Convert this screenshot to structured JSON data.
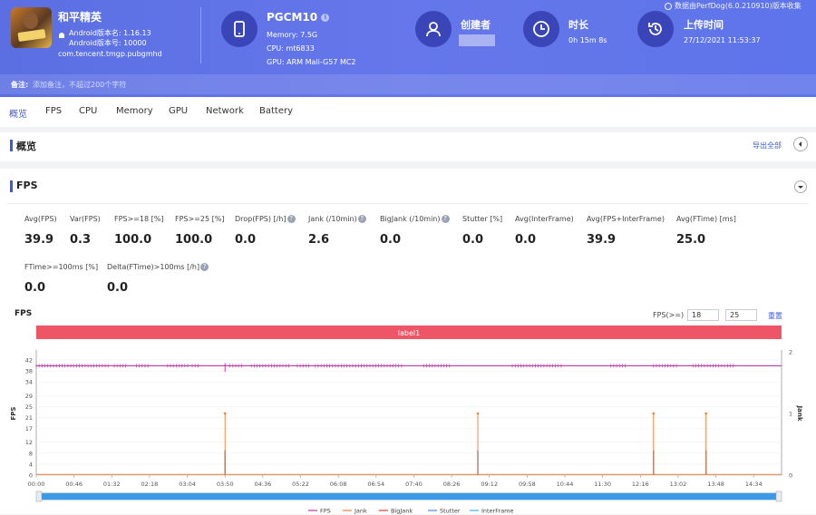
{
  "app": {
    "name": "和平精英",
    "version": "Android版本名: 1.16.13",
    "build": "Android版本号: 10000",
    "package": "com.tencent.tmgp.pubgmhd",
    "note_label": "备注:",
    "note_placeholder": "添加备注，不超过200个字符"
  },
  "device": {
    "name": "PGCM10",
    "memory": "Memory: 7.5G",
    "cpu": "CPU: mt6833",
    "gpu": "GPU: ARM Mali-G57 MC2"
  },
  "creator": {
    "label": "创建者"
  },
  "duration": {
    "label": "时长",
    "value": "0h 15m 8s"
  },
  "upload": {
    "label": "上传时间",
    "value": "27/12/2021 11:53:37"
  },
  "source": "数据由PerfDog(6.0.210910)版本收集",
  "tabs": [
    "概览",
    "FPS",
    "CPU",
    "Memory",
    "GPU",
    "Network",
    "Battery"
  ],
  "overview": {
    "title": "概览",
    "export": "导出全部"
  },
  "fps_section": {
    "title": "FPS"
  },
  "metrics": [
    {
      "label": "Avg(FPS)",
      "value": "39.9",
      "help": false
    },
    {
      "label": "Var(FPS)",
      "value": "0.3",
      "help": false
    },
    {
      "label": "FPS>=18 [%]",
      "value": "100.0",
      "help": false
    },
    {
      "label": "FPS>=25 [%]",
      "value": "100.0",
      "help": false
    },
    {
      "label": "Drop(FPS) [/h]",
      "value": "0.0",
      "help": true
    },
    {
      "label": "Jank (/10min)",
      "value": "2.6",
      "help": true
    },
    {
      "label": "BigJank (/10min)",
      "value": "0.0",
      "help": true
    },
    {
      "label": "Stutter [%]",
      "value": "0.0",
      "help": false
    },
    {
      "label": "Avg(InterFrame)",
      "value": "0.0",
      "help": false
    },
    {
      "label": "Avg(FPS+InterFrame)",
      "value": "39.9",
      "help": false
    },
    {
      "label": "Avg(FTime) [ms]",
      "value": "25.0",
      "help": false
    },
    {
      "label": "FTime>=100ms [%]",
      "value": "0.0",
      "help": false
    },
    {
      "label": "Delta(FTime)>100ms [/h]",
      "value": "0.0",
      "help": true
    }
  ],
  "chart_ctrl": {
    "title": "FPS",
    "threshold_label": "FPS(>=)",
    "threshold1": "18",
    "threshold2": "25",
    "reset": "重置"
  },
  "chart_data": {
    "type": "line",
    "band_label": "label1",
    "ylabel": "FPS",
    "y2label": "Jank",
    "ylim": [
      0,
      45
    ],
    "yticks": [
      0,
      4,
      8,
      12,
      17,
      21,
      25,
      29,
      34,
      38,
      42
    ],
    "y2lim": [
      0,
      2
    ],
    "y2ticks": [
      0,
      1,
      2
    ],
    "xlim_seconds": [
      0,
      908
    ],
    "xticks": [
      "00:00",
      "00:46",
      "01:32",
      "02:18",
      "03:04",
      "03:50",
      "04:36",
      "05:22",
      "06:08",
      "06:54",
      "07:40",
      "08:26",
      "09:12",
      "09:58",
      "10:44",
      "11:30",
      "12:16",
      "13:02",
      "13:48",
      "14:34"
    ],
    "fps_level": 39.9,
    "fps_dips": [
      {
        "t": "03:50",
        "value": 38
      }
    ],
    "jank_events": [
      "03:50",
      "08:58",
      "12:32",
      "13:36"
    ],
    "jank_value": 1,
    "stutter_peak_fps": 9,
    "series": [
      {
        "name": "FPS",
        "color": "#c23aa8"
      },
      {
        "name": "Jank",
        "color": "#f07e2c"
      },
      {
        "name": "BigJank",
        "color": "#e03b3b"
      },
      {
        "name": "Stutter",
        "color": "#4c8ee6"
      },
      {
        "name": "InterFrame",
        "color": "#3ab0e8"
      }
    ]
  }
}
